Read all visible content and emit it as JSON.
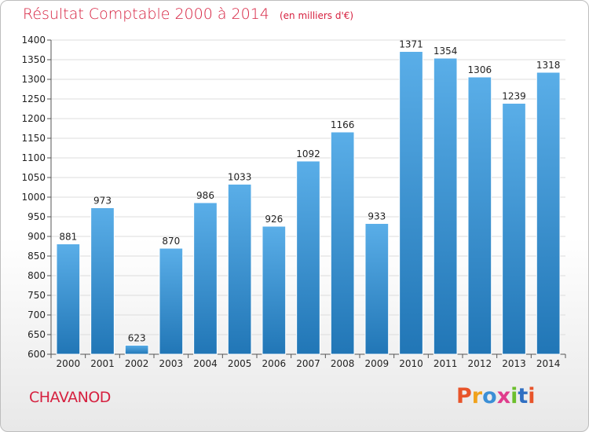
{
  "header": {
    "title": "Résultat Comptable 2000 à 2014",
    "subtitle": "(en milliers d'€)"
  },
  "footer": {
    "commune": "CHAVANOD",
    "logo_text": "Proxiti"
  },
  "colors": {
    "title": "#d6203f",
    "bar_top": "#5aaee8",
    "bar_bottom": "#2176b6",
    "grid": "#dcdcdc",
    "logo": [
      "#e8542a",
      "#f0a21c",
      "#3b8fd6",
      "#e03c8c",
      "#6cbf2c",
      "#2f6fc2",
      "#e8542a"
    ]
  },
  "chart_data": {
    "type": "bar",
    "categories": [
      "2000",
      "2001",
      "2002",
      "2003",
      "2004",
      "2005",
      "2006",
      "2007",
      "2008",
      "2009",
      "2010",
      "2011",
      "2012",
      "2013",
      "2014"
    ],
    "values": [
      881,
      973,
      623,
      870,
      986,
      1033,
      926,
      1092,
      1166,
      933,
      1371,
      1354,
      1306,
      1239,
      1318
    ],
    "title": "Résultat Comptable 2000 à 2014",
    "ylim": [
      600,
      1400
    ],
    "yticks": [
      600,
      650,
      700,
      750,
      800,
      850,
      900,
      950,
      1000,
      1050,
      1100,
      1150,
      1200,
      1250,
      1300,
      1350,
      1400
    ],
    "grid": true,
    "data_labels": true
  }
}
